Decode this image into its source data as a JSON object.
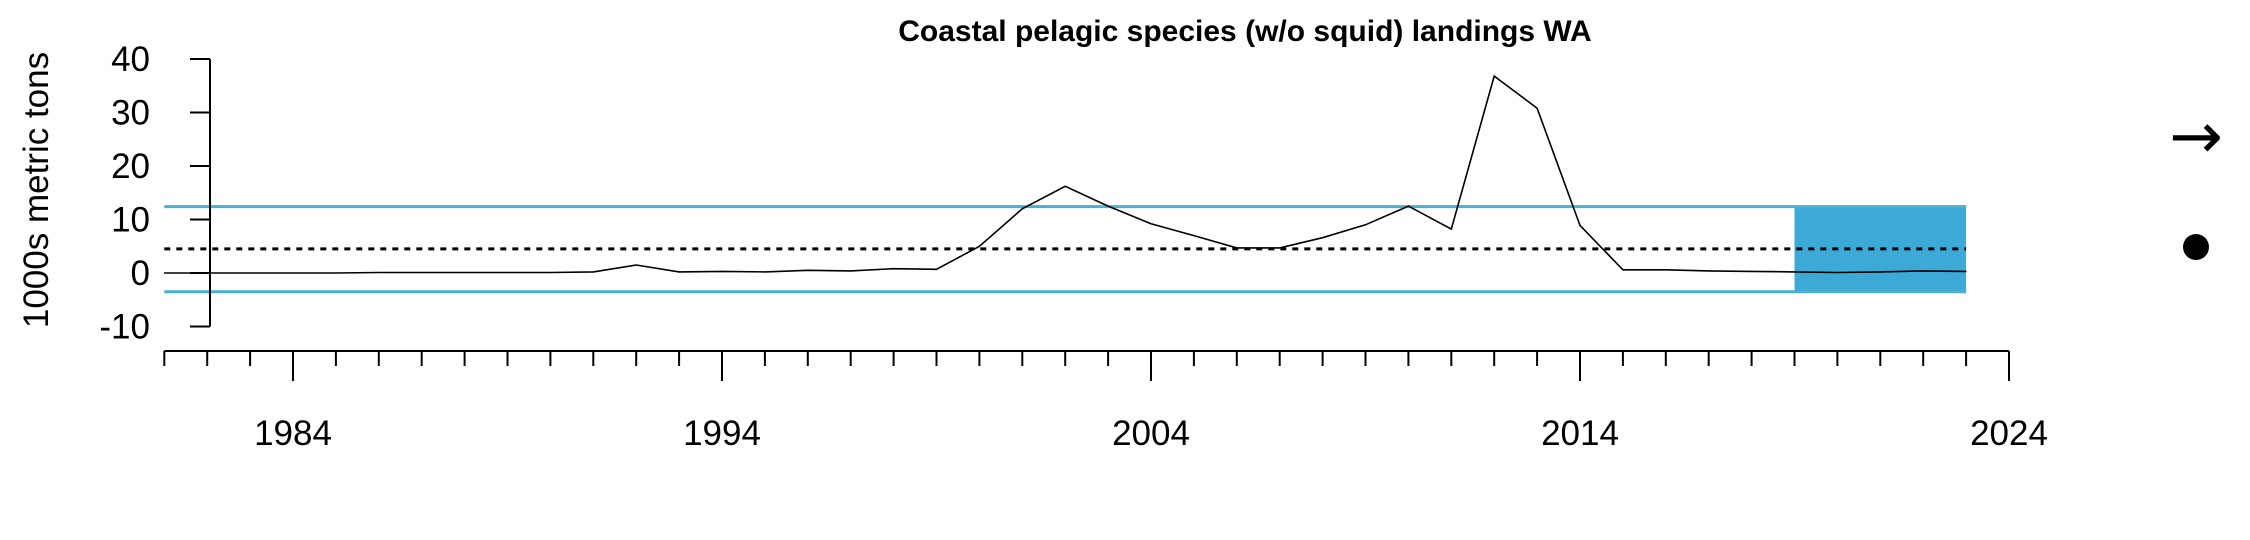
{
  "chart_data": {
    "type": "line",
    "title": "Coastal pelagic species (w/o squid) landings WA",
    "ylabel": "1000s metric tons",
    "xlabel": "",
    "xlim": [
      1981,
      2024
    ],
    "ylim": [
      -10,
      40
    ],
    "y_ticks": [
      -10,
      0,
      10,
      20,
      30,
      40
    ],
    "x_labeled_ticks": [
      1984,
      1994,
      2004,
      2014,
      2024
    ],
    "x": [
      1981,
      1982,
      1983,
      1984,
      1985,
      1986,
      1987,
      1988,
      1989,
      1990,
      1991,
      1992,
      1993,
      1994,
      1995,
      1996,
      1997,
      1998,
      1999,
      2000,
      2001,
      2002,
      2003,
      2004,
      2005,
      2006,
      2007,
      2008,
      2009,
      2010,
      2011,
      2012,
      2013,
      2014,
      2015,
      2016,
      2017,
      2018,
      2019,
      2020,
      2021,
      2022,
      2023
    ],
    "values": [
      0,
      0,
      0,
      0,
      0,
      0.1,
      0.1,
      0.1,
      0.1,
      0.1,
      0.2,
      1.5,
      0.2,
      0.3,
      0.2,
      0.5,
      0.4,
      0.8,
      0.7,
      5.0,
      12.0,
      16.2,
      12.5,
      9.2,
      7.0,
      4.7,
      4.7,
      6.6,
      9.0,
      12.5,
      8.2,
      36.8,
      30.8,
      8.9,
      0.6,
      0.6,
      0.4,
      0.3,
      0.2,
      0.1,
      0.2,
      0.4,
      0.3
    ],
    "mean": 4.5,
    "upper_sd": 12.4,
    "lower_sd": -3.5,
    "recent_window": [
      2019,
      2023
    ],
    "trend_symbol": "→",
    "mean_symbol": "●",
    "colors": {
      "line": "#000000",
      "sd_lines": "#4BAFCF",
      "shade": "#3DA9D6",
      "mean": "#000000"
    }
  }
}
